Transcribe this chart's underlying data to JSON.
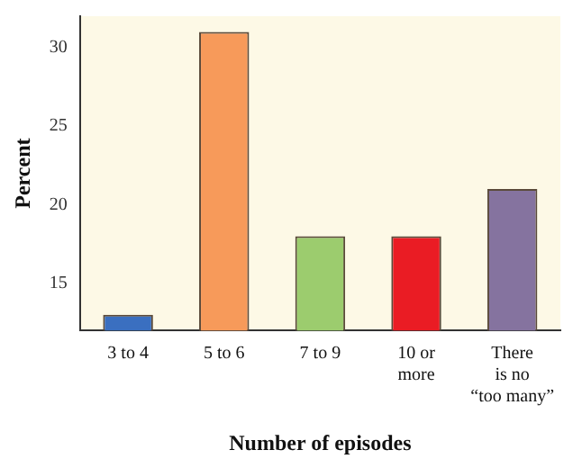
{
  "chart_data": {
    "type": "bar",
    "xlabel": "Number of episodes",
    "ylabel": "Percent",
    "categories": [
      "3 to 4",
      "5 to 6",
      "7 to 9",
      "10 or\nmore",
      "There\nis no\n“too many”"
    ],
    "values": [
      13,
      31,
      18,
      18,
      21
    ],
    "colors": [
      "#3a6fc0",
      "#f79a5a",
      "#9ccc6e",
      "#ea1c24",
      "#85739f"
    ],
    "ylim": [
      12,
      32
    ],
    "yticks": [
      15,
      20,
      25,
      30
    ],
    "grid": false,
    "legend": false
  }
}
